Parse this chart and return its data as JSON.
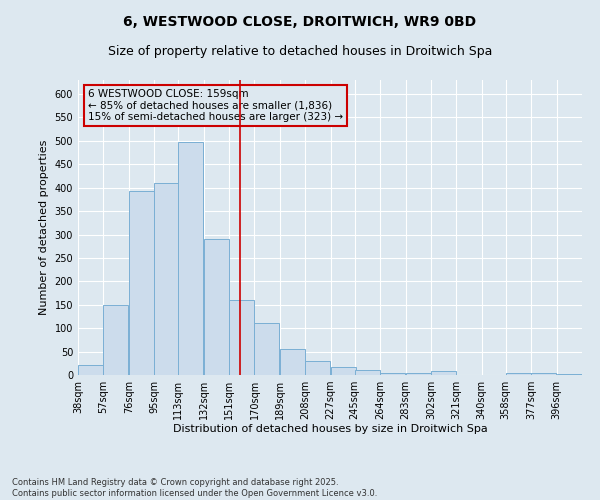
{
  "title": "6, WESTWOOD CLOSE, DROITWICH, WR9 0BD",
  "subtitle": "Size of property relative to detached houses in Droitwich Spa",
  "xlabel": "Distribution of detached houses by size in Droitwich Spa",
  "ylabel": "Number of detached properties",
  "bins": [
    38,
    57,
    76,
    95,
    113,
    132,
    151,
    170,
    189,
    208,
    227,
    245,
    264,
    283,
    302,
    321,
    340,
    358,
    377,
    396,
    415
  ],
  "counts": [
    22,
    150,
    393,
    410,
    497,
    290,
    160,
    110,
    55,
    30,
    17,
    11,
    5,
    4,
    8,
    1,
    0,
    5,
    5,
    3
  ],
  "bar_color": "#ccdcec",
  "bar_edgecolor": "#7aafd4",
  "property_size": 159,
  "vline_color": "#cc0000",
  "annotation_text": "6 WESTWOOD CLOSE: 159sqm\n← 85% of detached houses are smaller (1,836)\n15% of semi-detached houses are larger (323) →",
  "annotation_box_color": "#cc0000",
  "bg_color": "#dde8f0",
  "grid_color": "#ffffff",
  "ylim": [
    0,
    630
  ],
  "yticks": [
    0,
    50,
    100,
    150,
    200,
    250,
    300,
    350,
    400,
    450,
    500,
    550,
    600
  ],
  "footnote": "Contains HM Land Registry data © Crown copyright and database right 2025.\nContains public sector information licensed under the Open Government Licence v3.0.",
  "title_fontsize": 10,
  "subtitle_fontsize": 9,
  "label_fontsize": 8,
  "tick_fontsize": 7,
  "annot_fontsize": 7.5
}
